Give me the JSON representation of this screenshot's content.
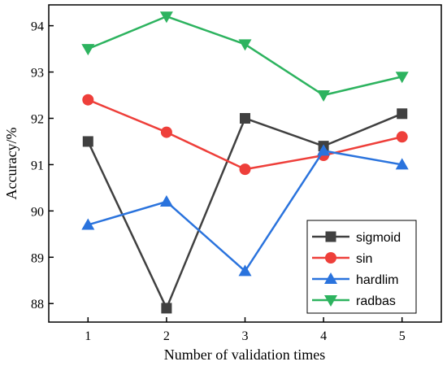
{
  "chart_data": {
    "type": "line",
    "x": [
      1,
      2,
      3,
      4,
      5
    ],
    "xlabel": "Number of validation times",
    "ylabel": "Accuracy/%",
    "xlim": [
      0.5,
      5.5
    ],
    "ylim": [
      87.6,
      94.45
    ],
    "xticks": [
      "1",
      "2",
      "3",
      "4",
      "5"
    ],
    "yticks": [
      "88",
      "89",
      "90",
      "91",
      "92",
      "93",
      "94"
    ],
    "grid": false,
    "legend_position": "bottom-right",
    "series": [
      {
        "name": "sigmoid",
        "values": [
          91.5,
          87.9,
          92.0,
          91.4,
          92.1
        ],
        "color": "#404040",
        "marker": "square"
      },
      {
        "name": "sin",
        "values": [
          92.4,
          91.7,
          90.9,
          91.2,
          91.6
        ],
        "color": "#ee3f3a",
        "marker": "circle"
      },
      {
        "name": "hardlim",
        "values": [
          89.7,
          90.2,
          88.7,
          91.3,
          91.0
        ],
        "color": "#2a73dd",
        "marker": "triangle-up"
      },
      {
        "name": "radbas",
        "values": [
          93.5,
          94.2,
          93.6,
          92.5,
          92.9
        ],
        "color": "#2db35f",
        "marker": "triangle-down"
      }
    ]
  }
}
